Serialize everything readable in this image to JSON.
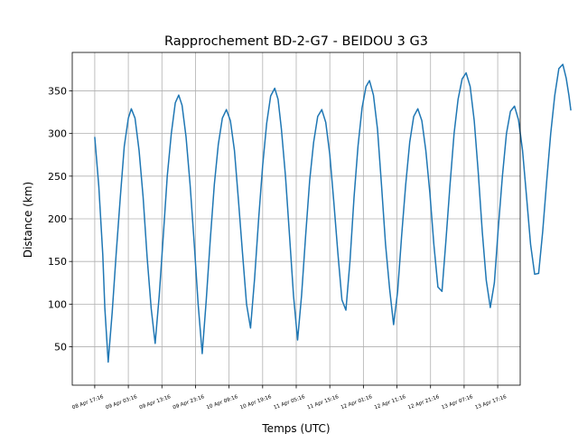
{
  "chart_data": {
    "type": "line",
    "title": "Rapprochement BD-2-G7 - BEIDOU 3 G3",
    "xlabel": "Temps (UTC)",
    "ylabel": "Distance (km)",
    "xlim_hours": [
      -6.7,
      126.7
    ],
    "ylim": [
      5,
      395
    ],
    "grid": true,
    "line_color": "#1f77b4",
    "x_tick_labels": [
      "08 Apr 17:16",
      "09 Apr 03:16",
      "09 Apr 13:16",
      "09 Apr 23:16",
      "10 Apr 09:16",
      "10 Apr 19:16",
      "11 Apr 05:16",
      "11 Apr 15:16",
      "12 Apr 01:16",
      "12 Apr 11:16",
      "12 Apr 21:16",
      "13 Apr 07:16",
      "13 Apr 17:16"
    ],
    "y_ticks": [
      50,
      100,
      150,
      200,
      250,
      300,
      350
    ],
    "series": [
      {
        "values": [
          [
            0,
            296
          ],
          [
            1.2,
            238
          ],
          [
            2.4,
            158
          ],
          [
            3,
            95
          ],
          [
            4,
            32
          ],
          [
            5.2,
            90
          ],
          [
            6.4,
            160
          ],
          [
            7.6,
            225
          ],
          [
            8.8,
            285
          ],
          [
            10,
            318
          ],
          [
            10.9,
            329
          ],
          [
            12,
            318
          ],
          [
            13.2,
            280
          ],
          [
            14.4,
            225
          ],
          [
            15.6,
            155
          ],
          [
            16.8,
            95
          ],
          [
            18,
            54
          ],
          [
            19.2,
            110
          ],
          [
            20.4,
            180
          ],
          [
            21.6,
            250
          ],
          [
            22.8,
            300
          ],
          [
            24,
            336
          ],
          [
            25,
            345
          ],
          [
            26,
            333
          ],
          [
            27.2,
            296
          ],
          [
            28.4,
            240
          ],
          [
            29.6,
            172
          ],
          [
            30.8,
            100
          ],
          [
            32,
            42
          ],
          [
            33.2,
            105
          ],
          [
            34.4,
            175
          ],
          [
            35.6,
            240
          ],
          [
            36.8,
            287
          ],
          [
            38,
            318
          ],
          [
            39.2,
            328
          ],
          [
            40.4,
            315
          ],
          [
            41.6,
            280
          ],
          [
            42.8,
            222
          ],
          [
            44,
            160
          ],
          [
            45.2,
            100
          ],
          [
            46.4,
            72
          ],
          [
            47.6,
            130
          ],
          [
            48.8,
            200
          ],
          [
            50,
            262
          ],
          [
            51.2,
            312
          ],
          [
            52.4,
            344
          ],
          [
            53.6,
            353
          ],
          [
            54.6,
            340
          ],
          [
            55.6,
            305
          ],
          [
            56.8,
            250
          ],
          [
            58,
            180
          ],
          [
            59.2,
            110
          ],
          [
            60.4,
            58
          ],
          [
            61.6,
            110
          ],
          [
            62.8,
            180
          ],
          [
            64,
            245
          ],
          [
            65.2,
            290
          ],
          [
            66.4,
            320
          ],
          [
            67.6,
            328
          ],
          [
            68.8,
            313
          ],
          [
            70,
            275
          ],
          [
            71.2,
            220
          ],
          [
            72.4,
            160
          ],
          [
            73.6,
            105
          ],
          [
            74.8,
            93
          ],
          [
            76,
            150
          ],
          [
            77.2,
            225
          ],
          [
            78.4,
            285
          ],
          [
            79.6,
            330
          ],
          [
            80.8,
            355
          ],
          [
            81.8,
            362
          ],
          [
            83,
            345
          ],
          [
            84.2,
            305
          ],
          [
            85.4,
            240
          ],
          [
            86.6,
            170
          ],
          [
            87.8,
            118
          ],
          [
            89,
            76
          ],
          [
            90.2,
            115
          ],
          [
            91.4,
            180
          ],
          [
            92.6,
            240
          ],
          [
            93.8,
            290
          ],
          [
            95,
            320
          ],
          [
            96.2,
            329
          ],
          [
            97.4,
            315
          ],
          [
            98.6,
            280
          ],
          [
            99.8,
            230
          ],
          [
            101,
            170
          ],
          [
            102.2,
            120
          ],
          [
            103.4,
            115
          ],
          [
            104.6,
            175
          ],
          [
            105.8,
            240
          ],
          [
            107,
            300
          ],
          [
            108.2,
            340
          ],
          [
            109.4,
            364
          ],
          [
            110.6,
            371
          ],
          [
            111.8,
            355
          ],
          [
            113,
            315
          ],
          [
            114.2,
            255
          ],
          [
            115.4,
            185
          ],
          [
            116.6,
            128
          ],
          [
            117.8,
            96
          ],
          [
            119,
            125
          ],
          [
            120.2,
            190
          ],
          [
            121.4,
            250
          ],
          [
            122.6,
            300
          ],
          [
            123.8,
            326
          ],
          [
            125,
            332
          ],
          [
            126.2,
            316
          ],
          [
            127.4,
            280
          ],
          [
            128.6,
            225
          ],
          [
            129.8,
            170
          ],
          [
            131,
            135
          ],
          [
            132.2,
            136
          ],
          [
            133.4,
            185
          ],
          [
            134.6,
            245
          ],
          [
            135.8,
            300
          ],
          [
            137,
            345
          ],
          [
            138.2,
            376
          ],
          [
            139.4,
            381
          ],
          [
            140.4,
            365
          ],
          [
            141.2,
            345
          ],
          [
            141.8,
            327
          ]
        ]
      }
    ]
  }
}
